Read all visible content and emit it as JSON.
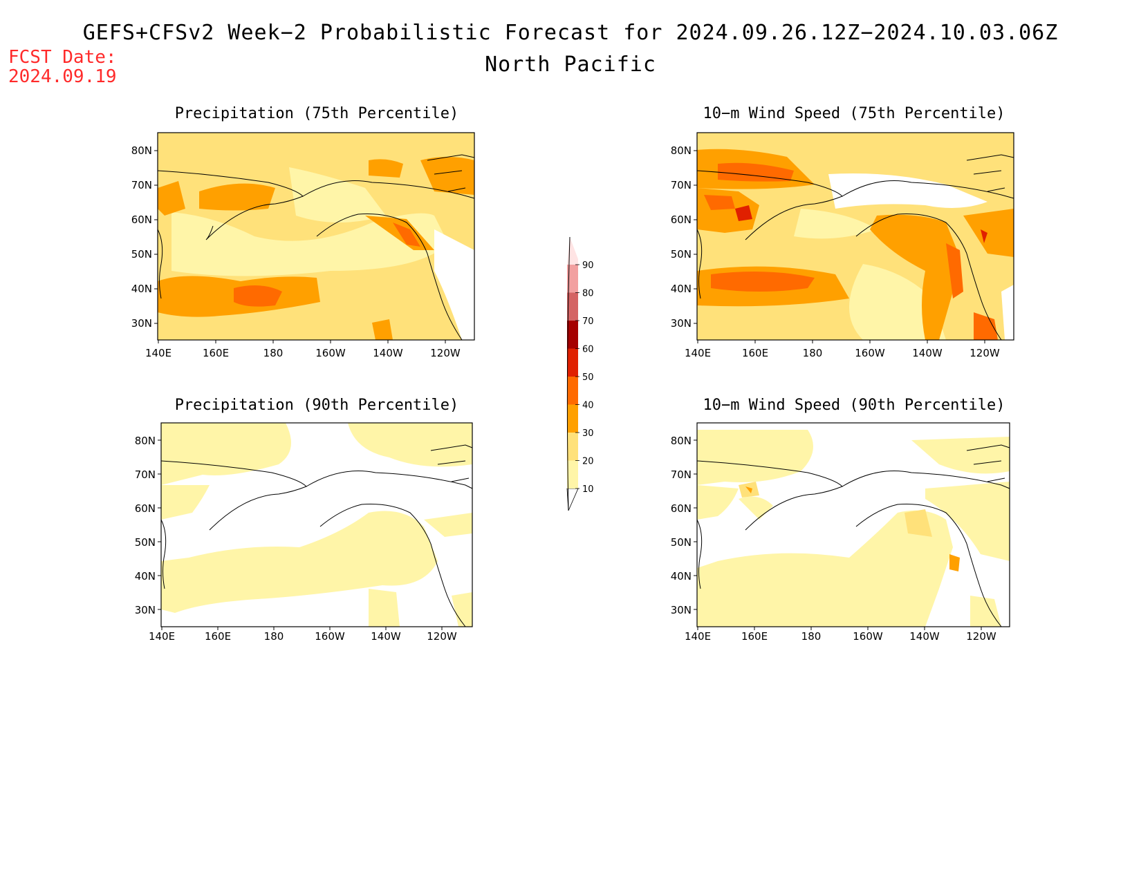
{
  "header": {
    "title_line1": "GEFS+CFSv2 Week−2 Probabilistic Forecast for 2024.09.26.12Z−2024.10.03.06Z",
    "title_line2": "North Pacific",
    "fcst_label": "FCST Date:",
    "fcst_date": "2024.09.19",
    "fcst_color": "#ff2a2a"
  },
  "panels": [
    {
      "title": "Precipitation (75th Percentile)"
    },
    {
      "title": "10−m Wind Speed (75th Percentile)"
    },
    {
      "title": "Precipitation (90th Percentile)"
    },
    {
      "title": "10−m Wind Speed (90th Percentile)"
    }
  ],
  "axes": {
    "lat_labels": [
      "80N",
      "70N",
      "60N",
      "50N",
      "40N",
      "30N"
    ],
    "lon_labels": [
      "140E",
      "160E",
      "180",
      "160W",
      "140W",
      "120W"
    ]
  },
  "colorbar": {
    "levels": [
      "10",
      "20",
      "30",
      "40",
      "50",
      "60",
      "70",
      "80",
      "90"
    ],
    "colors": [
      "#fff5a8",
      "#ffe17a",
      "#ffa000",
      "#ff6a00",
      "#e02000",
      "#a50000",
      "#d46464",
      "#f2a0a0",
      "#ffe4e4"
    ]
  }
}
